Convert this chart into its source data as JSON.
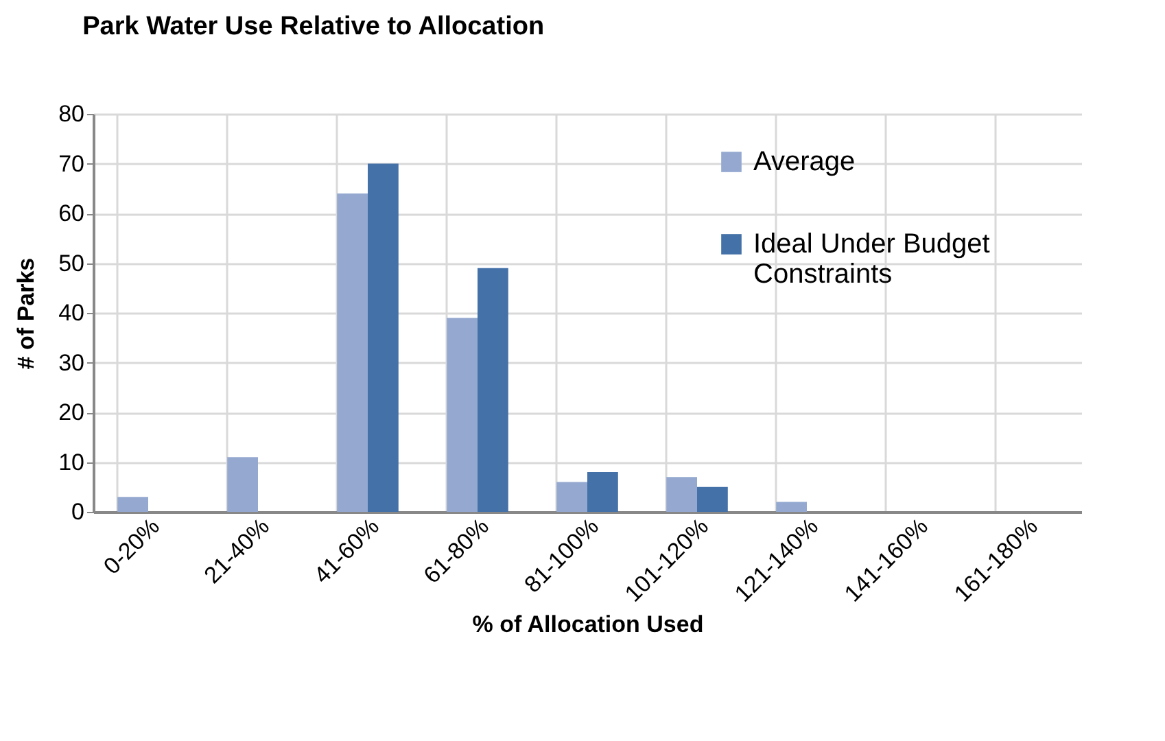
{
  "chart_data": {
    "type": "bar",
    "title": "Park Water Use Relative to Allocation",
    "xlabel": "% of Allocation Used",
    "ylabel": "# of Parks",
    "categories": [
      "0-20%",
      "21-40%",
      "41-60%",
      "61-80%",
      "81-100%",
      "101-120%",
      "121-140%",
      "141-160%",
      "161-180%"
    ],
    "series": [
      {
        "name": "Average",
        "color": "#95a9d0",
        "values": [
          3,
          11,
          64,
          39,
          6,
          7,
          2,
          0,
          0
        ]
      },
      {
        "name": "Ideal Under Budget Constraints",
        "color": "#4472a8",
        "values": [
          0,
          0,
          70,
          49,
          8,
          5,
          0,
          0,
          0
        ]
      }
    ],
    "ylim": [
      0,
      80
    ],
    "yticks": [
      0,
      10,
      20,
      30,
      40,
      50,
      60,
      70,
      80
    ],
    "grid": true,
    "legend": "top right"
  }
}
